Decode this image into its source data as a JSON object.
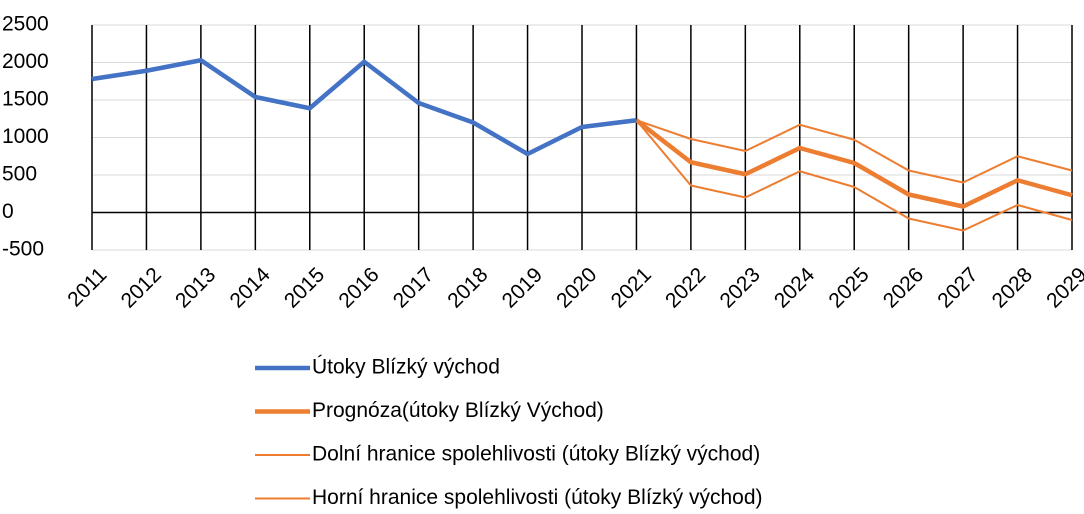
{
  "chart_data": {
    "type": "line",
    "categories": [
      "2011",
      "2012",
      "2013",
      "2014",
      "2015",
      "2016",
      "2017",
      "2018",
      "2019",
      "2020",
      "2021",
      "2022",
      "2023",
      "2024",
      "2025",
      "2026",
      "2027",
      "2028",
      "2029"
    ],
    "series": [
      {
        "name": "Útoky Blízký východ",
        "color": "#4472c4",
        "values": [
          1780,
          1890,
          2030,
          1540,
          1390,
          2010,
          1460,
          1200,
          780,
          1140,
          1230,
          null,
          null,
          null,
          null,
          null,
          null,
          null,
          null
        ]
      },
      {
        "name": "Prognóza(útoky Blízký Východ)",
        "color": "#ed7d31",
        "values": [
          null,
          null,
          null,
          null,
          null,
          null,
          null,
          null,
          null,
          null,
          1230,
          670,
          510,
          860,
          660,
          240,
          80,
          430,
          230
        ]
      },
      {
        "name": "Dolní hranice spolehlivosti (útoky Blízký východ)",
        "color": "#ed7d31",
        "values": [
          null,
          null,
          null,
          null,
          null,
          null,
          null,
          null,
          null,
          null,
          1230,
          360,
          200,
          550,
          340,
          -80,
          -240,
          100,
          -100
        ]
      },
      {
        "name": "Horní hranice spolehlivosti (útoky Blízký východ)",
        "color": "#ed7d31",
        "values": [
          null,
          null,
          null,
          null,
          null,
          null,
          null,
          null,
          null,
          null,
          1230,
          980,
          820,
          1170,
          970,
          560,
          400,
          750,
          560
        ]
      }
    ],
    "ylim": [
      -500,
      2500
    ],
    "yticks": [
      -500,
      0,
      500,
      1000,
      1500,
      2000,
      2500
    ],
    "grid": true,
    "legend": "bottom"
  }
}
